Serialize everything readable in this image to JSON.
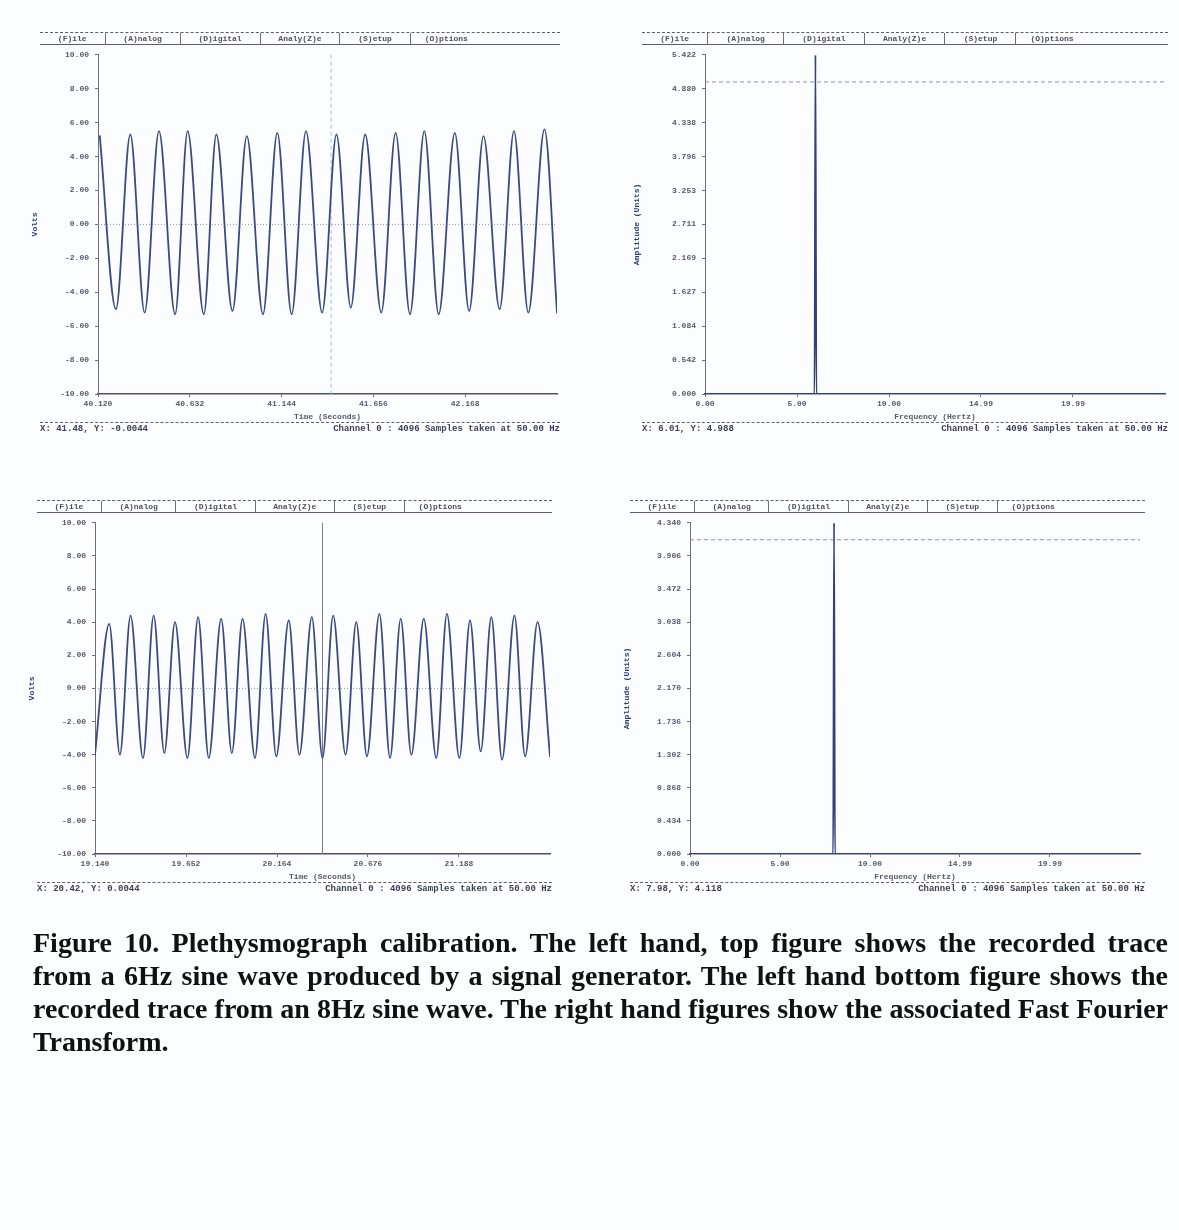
{
  "chart_data": [
    {
      "type": "line",
      "xlabel": "Time (Seconds)",
      "ylabel": "Volts",
      "color": "#3b4a80",
      "x": [
        40.13,
        40.22,
        40.3,
        40.38,
        40.46,
        40.55,
        40.62,
        40.71,
        40.78,
        40.87,
        40.95,
        41.04,
        41.12,
        41.2,
        41.28,
        41.37,
        41.45,
        41.53,
        41.61,
        41.7,
        41.78,
        41.86,
        41.94,
        42.02,
        42.11,
        42.19,
        42.27,
        42.36,
        42.44,
        42.52,
        42.61,
        42.68
      ],
      "values": [
        5.2,
        -5.0,
        5.3,
        -5.2,
        5.5,
        -5.3,
        5.5,
        -5.3,
        5.3,
        -5.1,
        5.2,
        -5.3,
        5.4,
        -5.3,
        5.5,
        -5.2,
        5.3,
        -4.9,
        5.3,
        -5.2,
        5.4,
        -5.3,
        5.5,
        -5.3,
        5.4,
        -5.1,
        5.2,
        -5.0,
        5.5,
        -5.2,
        5.6,
        -5.2
      ],
      "xlim": [
        40.12,
        42.68
      ],
      "ylim": [
        -10,
        10
      ],
      "xticks": [
        {
          "value": 40.12,
          "label": "40.120"
        },
        40.632,
        41.144,
        41.656,
        42.168
      ],
      "yticks": [
        {
          "value": -10,
          "label": "-10.00"
        },
        {
          "value": -8,
          "label": "-8.00"
        },
        {
          "value": -6,
          "label": "-6.00"
        },
        {
          "value": -4,
          "label": "-4.00"
        },
        {
          "value": -2,
          "label": "-2.00"
        },
        {
          "value": 0,
          "label": "0.00"
        },
        {
          "value": 2,
          "label": "2.00"
        },
        {
          "value": 4,
          "label": "4.00"
        },
        {
          "value": 6,
          "label": "6.00"
        },
        {
          "value": 8,
          "label": "8.00"
        },
        {
          "value": 10,
          "label": "10.00"
        }
      ],
      "ref_lines": [
        {
          "axis": "x",
          "value": 41.42,
          "color": "#9fc0d4",
          "line_style": "dashed"
        },
        {
          "axis": "y",
          "value": 0,
          "color": "#7d95b8",
          "line_style": "dotted"
        }
      ],
      "annotations": [
        "(F)ile",
        "(A)nalog",
        "(D)igital",
        "Analy(Z)e",
        "(S)etup",
        "(O)ptions",
        "X: 41.48, Y: -0.0044",
        "Channel 0 : 4096 Samples taken at 50.00 Hz"
      ]
    },
    {
      "type": "line",
      "xlabel": "Frequency (Hertz)",
      "ylabel": "Amplitude (Units)",
      "color": "#34407a",
      "x": [
        0,
        5.95,
        6.0,
        6.05,
        24.99
      ],
      "values": [
        0,
        0,
        5.422,
        0,
        0
      ],
      "xlim": [
        0,
        24.99
      ],
      "ylim": [
        0,
        5.422
      ],
      "xticks": [
        {
          "value": 0,
          "label": "0.00"
        },
        {
          "value": 5,
          "label": "5.00"
        },
        {
          "value": 10,
          "label": "10.00"
        },
        14.99,
        19.99
      ],
      "yticks": [
        {
          "value": 0,
          "label": "0.000"
        },
        0.542,
        1.084,
        1.627,
        2.169,
        2.711,
        3.253,
        3.796,
        4.338,
        {
          "value": 4.88,
          "label": "4.880"
        },
        5.422
      ],
      "ref_lines": [
        {
          "axis": "y",
          "value": 4.988,
          "color": "#8792b0",
          "line_style": "dashed"
        }
      ],
      "annotations": [
        "(F)ile",
        "(A)nalog",
        "(D)igital",
        "Analy(Z)e",
        "(S)etup",
        "(O)ptions",
        "X: 6.01, Y: 4.988",
        "Channel 0 : 4096 Samples taken at 50.00 Hz"
      ]
    },
    {
      "type": "line",
      "xlabel": "Time (Seconds)",
      "ylabel": "Volts",
      "color": "#3b4a80",
      "x": [
        19.14,
        19.22,
        19.28,
        19.34,
        19.41,
        19.47,
        19.53,
        19.59,
        19.66,
        19.72,
        19.78,
        19.85,
        19.91,
        19.97,
        20.04,
        20.1,
        20.16,
        20.23,
        20.29,
        20.36,
        20.42,
        20.48,
        20.55,
        20.61,
        20.67,
        20.74,
        20.8,
        20.86,
        20.92,
        20.99,
        21.06,
        21.12,
        21.19,
        21.25,
        21.31,
        21.37,
        21.43,
        21.5,
        21.56,
        21.63,
        21.7
      ],
      "values": [
        -4.0,
        3.9,
        -4.0,
        4.4,
        -4.2,
        4.4,
        -3.9,
        4.0,
        -4.2,
        4.3,
        -4.2,
        4.2,
        -3.9,
        4.2,
        -4.2,
        4.5,
        -4.1,
        4.1,
        -4.0,
        4.3,
        -4.2,
        4.4,
        -4.0,
        4.0,
        -4.1,
        4.5,
        -4.2,
        4.2,
        -4.0,
        4.2,
        -4.2,
        4.5,
        -4.2,
        4.1,
        -3.8,
        4.3,
        -4.3,
        4.4,
        -4.1,
        4.0,
        -4.1
      ],
      "xlim": [
        19.14,
        21.7
      ],
      "ylim": [
        -10,
        10
      ],
      "xticks": [
        {
          "value": 19.14,
          "label": "19.140"
        },
        19.652,
        20.164,
        20.676,
        21.188
      ],
      "yticks": [
        {
          "value": -10,
          "label": "-10.00"
        },
        {
          "value": -8,
          "label": "-8.00"
        },
        {
          "value": -6,
          "label": "-6.00"
        },
        {
          "value": -4,
          "label": "-4.00"
        },
        {
          "value": -2,
          "label": "-2.00"
        },
        {
          "value": 0,
          "label": "0.00"
        },
        {
          "value": 2,
          "label": "2.00"
        },
        {
          "value": 4,
          "label": "4.00"
        },
        {
          "value": 6,
          "label": "6.00"
        },
        {
          "value": 8,
          "label": "8.00"
        },
        {
          "value": 10,
          "label": "10.00"
        }
      ],
      "ref_lines": [
        {
          "axis": "x",
          "value": 20.42,
          "color": "#7a8090",
          "line_style": "solid"
        },
        {
          "axis": "y",
          "value": 0,
          "color": "#7d95b8",
          "line_style": "dotted"
        }
      ],
      "annotations": [
        "(F)ile",
        "(A)nalog",
        "(D)igital",
        "Analy(Z)e",
        "(S)etup",
        "(O)ptions",
        "X: 20.42, Y: 0.0044",
        "Channel 0 : 4096 Samples taken at 50.00 Hz"
      ]
    },
    {
      "type": "line",
      "xlabel": "Frequency (Hertz)",
      "ylabel": "Amplitude (Units)",
      "color": "#34407a",
      "x": [
        0,
        7.95,
        8.0,
        8.05,
        24.99
      ],
      "values": [
        0,
        0,
        4.34,
        0,
        0
      ],
      "xlim": [
        0,
        24.99
      ],
      "ylim": [
        0,
        4.34
      ],
      "xticks": [
        {
          "value": 0,
          "label": "0.00"
        },
        {
          "value": 5,
          "label": "5.00"
        },
        {
          "value": 10,
          "label": "10.00"
        },
        14.99,
        19.99
      ],
      "yticks": [
        {
          "value": 0,
          "label": "0.000"
        },
        0.434,
        0.868,
        1.302,
        1.736,
        {
          "value": 2.17,
          "label": "2.170"
        },
        2.604,
        3.038,
        3.472,
        3.906,
        {
          "value": 4.34,
          "label": "4.340"
        }
      ],
      "ref_lines": [
        {
          "axis": "y",
          "value": 4.118,
          "color": "#8792b0",
          "line_style": "dashed"
        }
      ],
      "annotations": [
        "(F)ile",
        "(A)nalog",
        "(D)igital",
        "Analy(Z)e",
        "(S)etup",
        "(O)ptions",
        "X: 7.98, Y: 4.118",
        "Channel 0 : 4096 Samples taken at 50.00 Hz"
      ]
    },
    {
      "type": "other",
      "annotations": [
        "Figure 10. Plethysmograph calibration. The left hand, top figure shows the recorded trace from a 6Hz sine wave produced by a signal generator. The left hand bottom figure shows the recorded trace from an 8Hz sine wave. The right hand figures show the associated Fast Fourier Transform."
      ]
    }
  ]
}
